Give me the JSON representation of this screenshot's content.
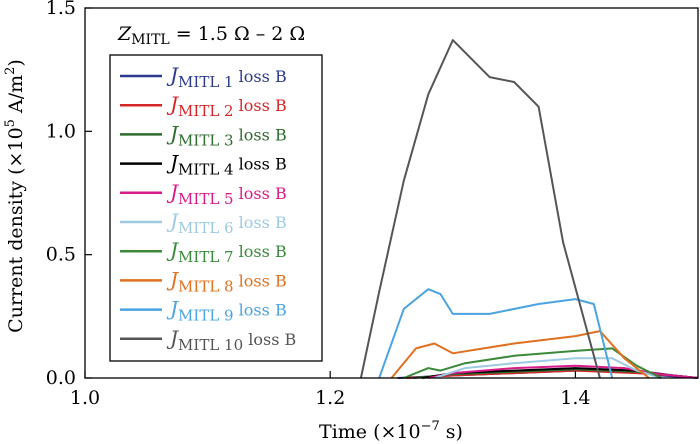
{
  "chart_data": {
    "type": "line",
    "title_main": "Z",
    "title_sub": "MITL",
    "title_rest": " = 1.5 Ω – 2 Ω",
    "xlabel": "Time (×10",
    "xlabel_exp": "−7",
    "xlabel_end": " s)",
    "ylabel": "Current density (×10",
    "ylabel_exp": "5",
    "ylabel_mid": " A/m",
    "ylabel_exp2": "2",
    "ylabel_end": ")",
    "xlim": [
      1.0,
      1.5
    ],
    "ylim": [
      0.0,
      1.5
    ],
    "xticks": [
      {
        "v": 1.0,
        "label": "1.0"
      },
      {
        "v": 1.2,
        "label": "1.2"
      },
      {
        "v": 1.4,
        "label": "1.4"
      }
    ],
    "yticks": [
      {
        "v": 0.0,
        "label": "0.0"
      },
      {
        "v": 0.5,
        "label": "0.5"
      },
      {
        "v": 1.0,
        "label": "1.0"
      },
      {
        "v": 1.5,
        "label": "1.5"
      }
    ],
    "legend_placement": "top-left",
    "series": [
      {
        "name": "J",
        "sub": "MITL 1",
        "rest": " loss B",
        "color": "#2b3a8f",
        "x": [
          1.255,
          1.3,
          1.35,
          1.4,
          1.44,
          1.47,
          1.5
        ],
        "y": [
          0.0,
          0.01,
          0.02,
          0.03,
          0.03,
          0.01,
          0.0
        ]
      },
      {
        "name": "J",
        "sub": "MITL 2",
        "rest": " loss B",
        "color": "#d62728",
        "x": [
          1.262,
          1.3,
          1.35,
          1.4,
          1.45,
          1.48,
          1.5
        ],
        "y": [
          0.0,
          0.01,
          0.02,
          0.03,
          0.02,
          0.01,
          0.0
        ]
      },
      {
        "name": "J",
        "sub": "MITL 3",
        "rest": " loss B",
        "color": "#2e6b2e",
        "x": [
          1.268,
          1.3,
          1.35,
          1.4,
          1.45,
          1.48,
          1.5
        ],
        "y": [
          0.0,
          0.015,
          0.025,
          0.035,
          0.025,
          0.01,
          0.0
        ]
      },
      {
        "name": "J",
        "sub": "MITL 4",
        "rest": " loss B",
        "color": "#000000",
        "x": [
          1.275,
          1.3,
          1.35,
          1.4,
          1.45,
          1.48,
          1.5
        ],
        "y": [
          0.0,
          0.02,
          0.03,
          0.04,
          0.03,
          0.01,
          0.0
        ]
      },
      {
        "name": "J",
        "sub": "MITL 5",
        "rest": " loss B",
        "color": "#d81b8a",
        "x": [
          1.28,
          1.3,
          1.35,
          1.4,
          1.44,
          1.47,
          1.5
        ],
        "y": [
          0.0,
          0.02,
          0.04,
          0.05,
          0.04,
          0.015,
          0.0
        ]
      },
      {
        "name": "J",
        "sub": "MITL 6",
        "rest": " loss B",
        "color": "#9ecae1",
        "x": [
          1.285,
          1.31,
          1.35,
          1.4,
          1.43,
          1.45,
          1.47
        ],
        "y": [
          0.0,
          0.04,
          0.06,
          0.08,
          0.08,
          0.03,
          0.0
        ]
      },
      {
        "name": "J",
        "sub": "MITL 7",
        "rest": " loss B",
        "color": "#3a8a3a",
        "x": [
          1.26,
          1.28,
          1.29,
          1.31,
          1.35,
          1.4,
          1.43,
          1.45,
          1.47
        ],
        "y": [
          0.0,
          0.04,
          0.03,
          0.06,
          0.09,
          0.11,
          0.12,
          0.05,
          0.0
        ]
      },
      {
        "name": "J",
        "sub": "MITL 8",
        "rest": " loss B",
        "color": "#e07020",
        "x": [
          1.25,
          1.27,
          1.285,
          1.3,
          1.35,
          1.4,
          1.42,
          1.44,
          1.46
        ],
        "y": [
          0.0,
          0.12,
          0.14,
          0.1,
          0.14,
          0.17,
          0.19,
          0.08,
          0.0
        ]
      },
      {
        "name": "J",
        "sub": "MITL 9",
        "rest": " loss B",
        "color": "#4ba3e0",
        "x": [
          1.24,
          1.26,
          1.28,
          1.29,
          1.3,
          1.33,
          1.37,
          1.4,
          1.415,
          1.43
        ],
        "y": [
          0.0,
          0.28,
          0.36,
          0.34,
          0.26,
          0.26,
          0.3,
          0.32,
          0.3,
          0.0
        ]
      },
      {
        "name": "J",
        "sub": "MITL 10",
        "rest": " loss B",
        "color": "#555555",
        "x": [
          1.225,
          1.24,
          1.26,
          1.28,
          1.3,
          1.31,
          1.33,
          1.35,
          1.37,
          1.39,
          1.42
        ],
        "y": [
          0.0,
          0.35,
          0.8,
          1.15,
          1.37,
          1.32,
          1.22,
          1.2,
          1.1,
          0.55,
          0.0
        ]
      }
    ]
  }
}
